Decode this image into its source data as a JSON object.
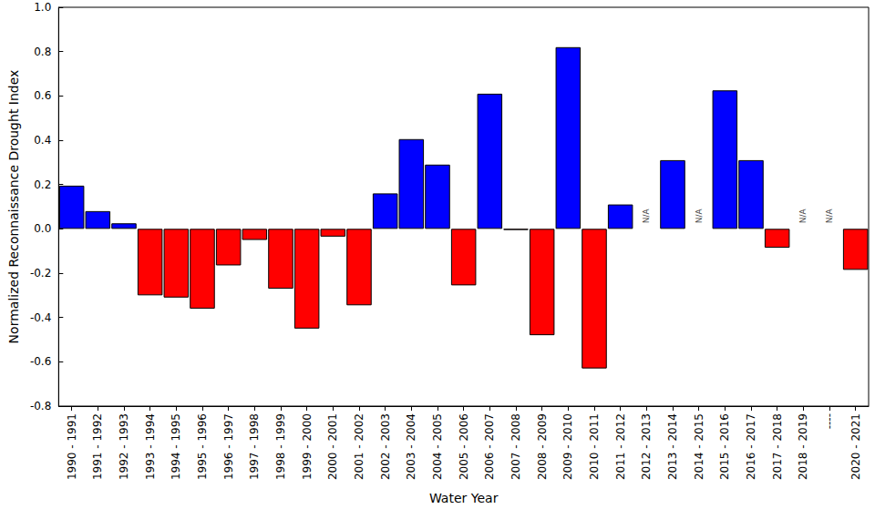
{
  "chart_data": {
    "type": "bar",
    "x_label": "Water Year",
    "y_label": "Normalized Reconnaissance Drought Index",
    "categories": [
      "1990 - 1991",
      "1991 - 1992",
      "1992 - 1993",
      "1993 - 1994",
      "1994 - 1995",
      "1995 - 1996",
      "1996 - 1997",
      "1997 - 1998",
      "1998 - 1999",
      "1999 - 2000",
      "2000 - 2001",
      "2001 - 2002",
      "2002 - 2003",
      "2003 - 2004",
      "2004 - 2005",
      "2005 - 2006",
      "2006 - 2007",
      "2007 - 2008",
      "2008 - 2009",
      "2009 - 2010",
      "2010 - 2011",
      "2011 - 2012",
      "2012 - 2013",
      "2013 - 2014",
      "2014 - 2015",
      "2015 - 2016",
      "2016 - 2017",
      "2017 - 2018",
      "2018 - 2019",
      "----",
      "2020 - 2021"
    ],
    "values": [
      0.195,
      0.08,
      0.025,
      -0.3,
      -0.31,
      -0.36,
      -0.165,
      -0.05,
      -0.27,
      -0.45,
      -0.035,
      -0.345,
      0.16,
      0.405,
      0.29,
      -0.255,
      0.61,
      -0.005,
      -0.48,
      0.82,
      -0.63,
      0.11,
      null,
      0.31,
      null,
      0.625,
      0.31,
      -0.085,
      null,
      null,
      -0.185
    ],
    "colors": [
      "#0000ff",
      "#0000ff",
      "#0000ff",
      "#ff0000",
      "#ff0000",
      "#ff0000",
      "#ff0000",
      "#ff0000",
      "#ff0000",
      "#ff0000",
      "#ff0000",
      "#ff0000",
      "#0000ff",
      "#0000ff",
      "#0000ff",
      "#ff0000",
      "#0000ff",
      "#ff0000",
      "#ff0000",
      "#0000ff",
      "#ff0000",
      "#0000ff",
      null,
      "#0000ff",
      null,
      "#0000ff",
      "#0000ff",
      "#ff0000",
      null,
      null,
      "#ff0000"
    ],
    "annotations": [
      {
        "category": "2012 - 2013",
        "y": 0,
        "text": "N/A"
      },
      {
        "category": "2014 - 2015",
        "y": 0,
        "text": "N/A"
      },
      {
        "category": "2018 - 2019",
        "y": 0,
        "text": "N/A"
      },
      {
        "category": "----",
        "y": 0,
        "text": "N/A"
      }
    ],
    "ylim": [
      -0.8,
      1.0
    ],
    "yticks": [
      -0.8,
      -0.6,
      -0.4,
      -0.2,
      {
        "value": 0,
        "label": "0.0"
      },
      0.2,
      0.4,
      0.6,
      0.8,
      {
        "value": 1,
        "label": "1.0"
      }
    ],
    "grid": false
  }
}
